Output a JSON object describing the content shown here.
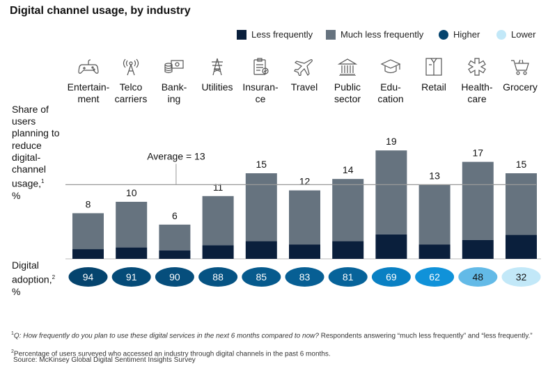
{
  "title": "Digital channel usage, by industry",
  "legend": [
    {
      "label": "Less frequently",
      "color": "#0a1f3c",
      "shape": "square"
    },
    {
      "label": "Much less frequently",
      "color": "#66737f",
      "shape": "square"
    },
    {
      "label": "Higher",
      "color": "#05446e",
      "shape": "circle"
    },
    {
      "label": "Lower",
      "color": "#c2e8f8",
      "shape": "circle"
    }
  ],
  "y_axis_label": {
    "text": "Share of users planning to reduce digital-channel usage,",
    "footnote_mark": "1",
    "unit": "%"
  },
  "digital_adoption_label": {
    "text": "Digital adoption,",
    "footnote_mark": "2",
    "unit": "%"
  },
  "industries": [
    {
      "name": "Entertain-\nment",
      "icon": "gamepad-icon"
    },
    {
      "name": "Telco\ncarriers",
      "icon": "antenna-icon"
    },
    {
      "name": "Bank-\ning",
      "icon": "money-icon"
    },
    {
      "name": "Utilities",
      "icon": "power-tower-icon"
    },
    {
      "name": "Insuran-\nce",
      "icon": "clipboard-icon"
    },
    {
      "name": "Travel",
      "icon": "airplane-icon"
    },
    {
      "name": "Public\nsector",
      "icon": "government-building-icon"
    },
    {
      "name": "Edu-\ncation",
      "icon": "graduation-cap-icon"
    },
    {
      "name": "Retail",
      "icon": "shirt-icon"
    },
    {
      "name": "Health-\ncare",
      "icon": "medical-star-icon"
    },
    {
      "name": "Grocery",
      "icon": "shopping-basket-icon"
    }
  ],
  "chart_data": {
    "type": "bar",
    "stacked": true,
    "categories": [
      "Entertainment",
      "Telco carriers",
      "Banking",
      "Utilities",
      "Insurance",
      "Travel",
      "Public sector",
      "Education",
      "Retail",
      "Healthcare",
      "Grocery"
    ],
    "series": [
      {
        "name": "Less frequently",
        "values": [
          1.7,
          2.0,
          1.5,
          2.4,
          3.1,
          2.5,
          3.1,
          4.3,
          2.5,
          3.3,
          4.2
        ]
      },
      {
        "name": "Much less frequently",
        "values": [
          6.3,
          8.0,
          4.5,
          8.6,
          11.9,
          9.5,
          10.9,
          14.7,
          10.5,
          13.7,
          10.8
        ]
      }
    ],
    "totals": [
      8,
      10,
      6,
      11,
      15,
      12,
      14,
      19,
      13,
      17,
      15
    ],
    "average": {
      "value": 13,
      "label": "Average = 13"
    },
    "digital_adoption": [
      94,
      91,
      90,
      88,
      85,
      83,
      81,
      69,
      62,
      48,
      32
    ],
    "adoption_color_scale": {
      "high": "#05446e",
      "low": "#c2e8f8"
    }
  },
  "footnotes": [
    {
      "mark": "1",
      "italic": "Q: How frequently do you plan to use these digital services in the next 6 months compared to now?",
      "rest": " Respondents answering “much less frequently” and “less frequently.”"
    },
    {
      "mark": "2",
      "italic": "",
      "rest": "Percentage of users surveyed who accessed an industry through digital channels in the past 6 months."
    }
  ],
  "source": "Source: McKinsey Global Digital Sentiment Insights Survey"
}
